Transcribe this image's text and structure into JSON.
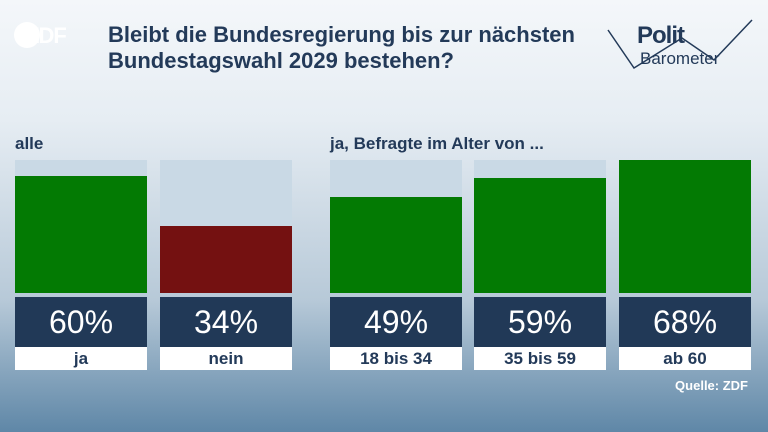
{
  "logo": {
    "text": "ZDF"
  },
  "title": "Bleibt die Bundesregierung bis zur nächsten Bundestagswahl 2029 bestehen?",
  "brand": {
    "line1": "Polit",
    "line2": "Barometer"
  },
  "groups": {
    "left_label": "alle",
    "right_label": "ja, Befragte im Alter von ..."
  },
  "source": "Quelle: ZDF",
  "colors": {
    "yes": "#037a03",
    "no": "#741111",
    "track": "#c9d9e5",
    "value_box": "#213957",
    "text": "#233a59"
  },
  "chart_data": {
    "type": "bar",
    "ylim": [
      0,
      68
    ],
    "bars": [
      {
        "category": "ja",
        "value": 60,
        "label": "60%",
        "color": "#037a03"
      },
      {
        "category": "nein",
        "value": 34,
        "label": "34%",
        "color": "#741111"
      },
      {
        "category": "18 bis 34",
        "value": 49,
        "label": "49%",
        "color": "#037a03"
      },
      {
        "category": "35 bis 59",
        "value": 59,
        "label": "59%",
        "color": "#037a03"
      },
      {
        "category": "ab 60",
        "value": 68,
        "label": "68%",
        "color": "#037a03"
      }
    ]
  }
}
